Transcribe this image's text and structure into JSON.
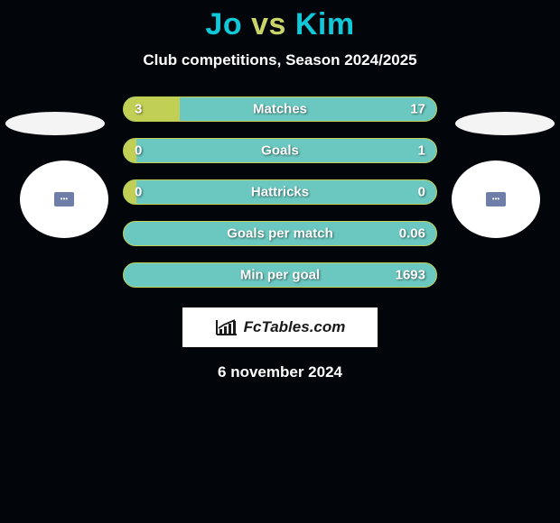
{
  "title": {
    "player1": "Jo",
    "vs": "vs",
    "player2": "Kim",
    "player1_color": "#11c8d9",
    "vs_color": "#c9d46a",
    "player2_color": "#11c8d9"
  },
  "subtitle": "Club competitions, Season 2024/2025",
  "subtitle_color": "#ffffff",
  "background_color": "#02060a",
  "ellipse_color": "#f4f4f4",
  "crest": {
    "bg_color": "#ffffff",
    "inner_color": "#6e7ea8"
  },
  "bars": [
    {
      "label": "Matches",
      "left": "3",
      "right": "17",
      "fill_pct": 18
    },
    {
      "label": "Goals",
      "left": "0",
      "right": "1",
      "fill_pct": 4
    },
    {
      "label": "Hattricks",
      "left": "0",
      "right": "0",
      "fill_pct": 4
    },
    {
      "label": "Goals per match",
      "left": "",
      "right": "0.06",
      "fill_pct": 0
    },
    {
      "label": "Min per goal",
      "left": "",
      "right": "1693",
      "fill_pct": 0
    }
  ],
  "bar_style": {
    "border_color": "#c2cf55",
    "fill_color": "#c2cf55",
    "track_color": "#6bc8c0",
    "label_color": "#ffffff",
    "value_color": "#ffffff",
    "label_fontsize": 15
  },
  "branding": {
    "text": "FcTables.com",
    "bg_color": "#ffffff",
    "text_color": "#1a1a1a",
    "icon_color": "#1a1a1a"
  },
  "date": "6 november 2024",
  "date_color": "#ffffff"
}
